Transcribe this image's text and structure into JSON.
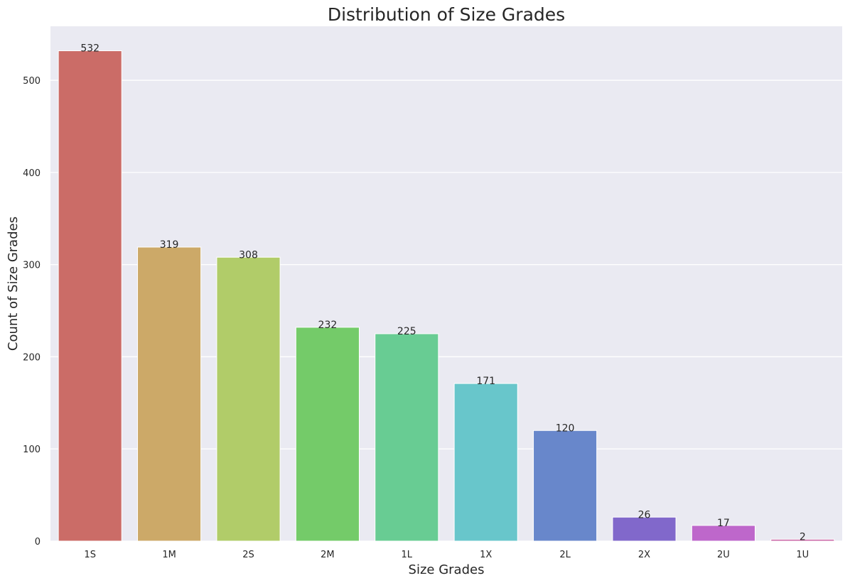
{
  "chart_data": {
    "type": "bar",
    "title": "Distribution of Size Grades",
    "xlabel": "Size Grades",
    "ylabel": "Count of Size Grades",
    "categories": [
      "1S",
      "1M",
      "2S",
      "2M",
      "1L",
      "1X",
      "2L",
      "2X",
      "2U",
      "1U"
    ],
    "values": [
      532,
      319,
      308,
      232,
      225,
      171,
      120,
      26,
      17,
      2
    ],
    "colors": [
      "#cb6c67",
      "#cca968",
      "#b1cc69",
      "#74cb69",
      "#68cc93",
      "#68c6cb",
      "#6887cb",
      "#8168cb",
      "#be67cb",
      "#cb68a7"
    ],
    "ylim": [
      0,
      558.6
    ],
    "yticks": [
      0,
      100,
      200,
      300,
      400,
      500
    ],
    "grid": true,
    "background": "#eaeaf2",
    "legend": "none"
  }
}
